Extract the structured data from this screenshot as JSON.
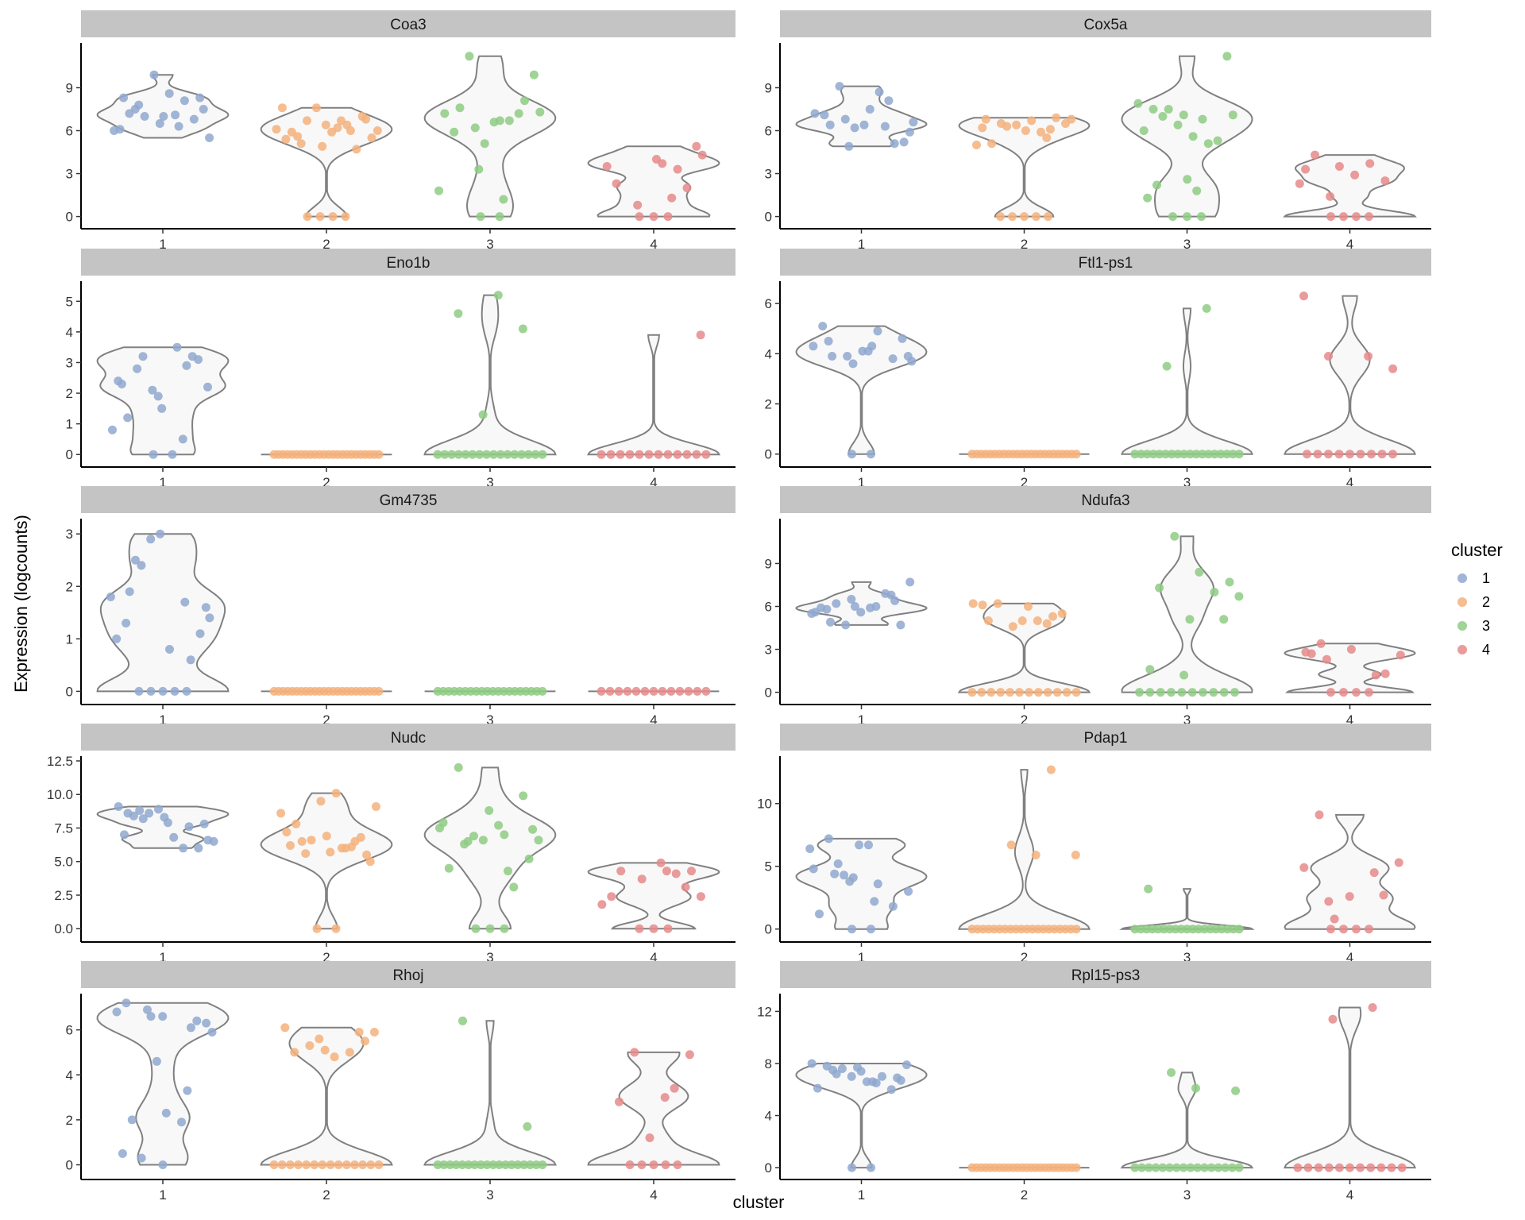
{
  "chart_data": {
    "type": "violin",
    "xlabel": "cluster",
    "ylabel": "Expression (logcounts)",
    "categories": [
      "1",
      "2",
      "3",
      "4"
    ],
    "legend": {
      "title": "cluster",
      "position": "right",
      "items": [
        "1",
        "2",
        "3",
        "4"
      ]
    },
    "colors": {
      "1": "#91a8cf",
      "2": "#f5b17c",
      "3": "#8fcb84",
      "4": "#e68a89"
    },
    "grid": false,
    "panels": [
      {
        "gene": "Coa3",
        "ylim": [
          -0.3,
          11.8
        ],
        "yticks": [
          0,
          3,
          6,
          9
        ],
        "groups": [
          {
            "cluster": "1",
            "values": [
              7.1,
              7.5,
              8.3,
              6.5,
              6.1,
              8.1,
              7.0,
              5.5,
              8.6,
              7.2,
              6.8,
              9.9,
              6.0,
              6.3,
              7.8,
              7.5,
              7.0,
              8.3
            ]
          },
          {
            "cluster": "2",
            "values": [
              6.0,
              6.2,
              5.6,
              7.0,
              4.9,
              7.6,
              6.4,
              6.7,
              5.5,
              5.9,
              5.9,
              4.7,
              7.6,
              6.1,
              6.7,
              5.1,
              6.8,
              6.4,
              5.4,
              6.0,
              0.0,
              0.0,
              0.0,
              0.0
            ]
          },
          {
            "cluster": "3",
            "values": [
              6.2,
              7.3,
              6.7,
              7.6,
              8.1,
              5.1,
              7.2,
              6.7,
              11.2,
              9.9,
              6.6,
              5.9,
              7.2,
              3.3,
              1.8,
              1.2,
              0.0,
              0.0
            ]
          },
          {
            "cluster": "4",
            "values": [
              3.3,
              0.8,
              4.3,
              3.7,
              0.0,
              2.0,
              0.0,
              3.5,
              1.3,
              0.0,
              4.9,
              4.0,
              2.3
            ]
          }
        ]
      },
      {
        "gene": "Cox5a",
        "ylim": [
          -0.3,
          11.8
        ],
        "yticks": [
          0,
          3,
          6,
          9
        ],
        "groups": [
          {
            "cluster": "1",
            "values": [
              6.3,
              6.8,
              5.9,
              7.5,
              6.4,
              5.1,
              6.2,
              7.2,
              8.7,
              9.1,
              5.2,
              6.4,
              7.1,
              8.1,
              4.9,
              6.6
            ]
          },
          {
            "cluster": "2",
            "values": [
              6.2,
              5.5,
              6.3,
              6.8,
              6.7,
              5.1,
              6.9,
              6.4,
              5.0,
              5.9,
              6.5,
              6.5,
              6.0,
              6.8,
              6.1,
              0.0,
              0.0,
              0.0,
              0.0,
              0.0
            ]
          },
          {
            "cluster": "3",
            "values": [
              7.1,
              6.0,
              5.1,
              7.5,
              7.1,
              5.6,
              7.5,
              5.3,
              6.4,
              7.9,
              6.8,
              7.0,
              11.2,
              2.6,
              1.3,
              0.0,
              0.0,
              0.0,
              1.8,
              2.2
            ]
          },
          {
            "cluster": "4",
            "values": [
              2.5,
              0.0,
              3.3,
              3.7,
              1.4,
              0.0,
              2.9,
              4.3,
              0.0,
              3.5,
              2.3,
              0.0
            ]
          }
        ]
      },
      {
        "gene": "Eno1b",
        "ylim": [
          -0.15,
          5.5
        ],
        "yticks": [
          0,
          1,
          2,
          3,
          4,
          5
        ],
        "groups": [
          {
            "cluster": "1",
            "values": [
              3.1,
              1.9,
              2.4,
              0.5,
              3.2,
              2.2,
              0.0,
              1.2,
              3.2,
              2.1,
              0.8,
              3.5,
              2.8,
              0.0,
              1.5,
              2.3,
              2.9
            ]
          },
          {
            "cluster": "2",
            "values": [
              0,
              0,
              0,
              0,
              0,
              0,
              0,
              0,
              0,
              0,
              0,
              0,
              0,
              0,
              0,
              0,
              0,
              0,
              0,
              0,
              0,
              0,
              0,
              0
            ]
          },
          {
            "cluster": "3",
            "values": [
              5.2,
              4.6,
              4.1,
              1.3,
              0,
              0,
              0,
              0,
              0,
              0,
              0,
              0,
              0,
              0,
              0,
              0,
              0,
              0,
              0,
              0
            ]
          },
          {
            "cluster": "4",
            "values": [
              3.9,
              0,
              0,
              0,
              0,
              0,
              0,
              0,
              0,
              0,
              0,
              0,
              0
            ]
          }
        ]
      },
      {
        "gene": "Ftl1-ps1",
        "ylim": [
          -0.2,
          6.7
        ],
        "yticks": [
          0,
          2,
          4,
          6
        ],
        "groups": [
          {
            "cluster": "1",
            "values": [
              3.9,
              4.1,
              4.5,
              3.8,
              3.6,
              4.3,
              4.9,
              0.0,
              4.6,
              4.1,
              5.1,
              0.0,
              3.9,
              3.7,
              4.3,
              3.9
            ]
          },
          {
            "cluster": "2",
            "values": [
              0,
              0,
              0,
              0,
              0,
              0,
              0,
              0,
              0,
              0,
              0,
              0,
              0,
              0,
              0,
              0,
              0,
              0,
              0,
              0,
              0,
              0,
              0,
              0
            ]
          },
          {
            "cluster": "3",
            "values": [
              5.8,
              3.5,
              0,
              0,
              0,
              0,
              0,
              0,
              0,
              0,
              0,
              0,
              0,
              0,
              0,
              0,
              0,
              0,
              0,
              0
            ]
          },
          {
            "cluster": "4",
            "values": [
              6.3,
              3.9,
              3.9,
              3.4,
              0,
              0,
              0,
              0,
              0,
              0,
              0,
              0,
              0
            ]
          }
        ]
      },
      {
        "gene": "Gm4735",
        "ylim": [
          -0.1,
          3.2
        ],
        "yticks": [
          0,
          1,
          2,
          3
        ],
        "groups": [
          {
            "cluster": "1",
            "values": [
              1.0,
              0.0,
              2.4,
              1.6,
              0.0,
              1.3,
              0.6,
              2.9,
              1.8,
              0.0,
              2.5,
              1.1,
              3.0,
              0.0,
              1.7,
              0.0,
              1.4,
              0.8,
              1.9
            ]
          },
          {
            "cluster": "2",
            "values": [
              0,
              0,
              0,
              0,
              0,
              0,
              0,
              0,
              0,
              0,
              0,
              0,
              0,
              0,
              0,
              0,
              0,
              0,
              0,
              0,
              0,
              0,
              0,
              0
            ]
          },
          {
            "cluster": "3",
            "values": [
              0,
              0,
              0,
              0,
              0,
              0,
              0,
              0,
              0,
              0,
              0,
              0,
              0,
              0,
              0,
              0,
              0,
              0,
              0,
              0
            ]
          },
          {
            "cluster": "4",
            "values": [
              0,
              0,
              0,
              0,
              0,
              0,
              0,
              0,
              0,
              0,
              0,
              0,
              0
            ]
          }
        ]
      },
      {
        "gene": "Ndufa3",
        "ylim": [
          -0.3,
          11.8
        ],
        "yticks": [
          0,
          3,
          6,
          9
        ],
        "groups": [
          {
            "cluster": "1",
            "values": [
              5.8,
              6.8,
              6.5,
              5.5,
              6.0,
              6.2,
              4.7,
              5.6,
              5.9,
              6.9,
              4.7,
              7.7,
              5.9,
              4.9,
              6.4,
              6.0,
              5.6
            ]
          },
          {
            "cluster": "2",
            "values": [
              6.0,
              5.0,
              5.3,
              4.6,
              6.2,
              5.0,
              6.2,
              5.5,
              5.0,
              6.1,
              4.8,
              0,
              0,
              0,
              0,
              0,
              0,
              0,
              0,
              0,
              0,
              0,
              0
            ]
          },
          {
            "cluster": "3",
            "values": [
              7.7,
              5.1,
              1.6,
              7.0,
              10.9,
              6.7,
              8.4,
              7.3,
              5.1,
              1.2,
              0,
              0,
              0,
              0,
              0,
              0,
              0,
              0,
              0,
              0
            ]
          },
          {
            "cluster": "4",
            "values": [
              2.3,
              0.0,
              3.0,
              2.7,
              1.2,
              0.0,
              2.6,
              0.0,
              3.4,
              1.3,
              0.0,
              2.8
            ]
          }
        ]
      },
      {
        "gene": "Nudc",
        "ylim": [
          -0.4,
          12.5
        ],
        "yticks": [
          0.0,
          2.5,
          5.0,
          7.5,
          10.0,
          12.5
        ],
        "groups": [
          {
            "cluster": "1",
            "values": [
              8.8,
              7.8,
              8.3,
              7.0,
              7.6,
              8.6,
              6.5,
              6.8,
              8.4,
              6.0,
              8.9,
              9.1,
              6.0,
              8.2,
              6.6,
              7.9,
              8.6
            ]
          },
          {
            "cluster": "2",
            "values": [
              6.0,
              6.5,
              5.5,
              6.9,
              7.2,
              6.1,
              6.6,
              9.1,
              10.1,
              7.8,
              6.8,
              9.5,
              8.6,
              6.0,
              5.6,
              5.0,
              5.7,
              6.2,
              6.5,
              0.0,
              0.0
            ]
          },
          {
            "cluster": "3",
            "values": [
              7.5,
              7.0,
              6.3,
              5.2,
              8.8,
              4.5,
              3.1,
              6.9,
              6.6,
              7.7,
              12.0,
              9.9,
              6.6,
              7.9,
              4.3,
              6.5,
              7.4,
              0.0,
              0.0,
              0.0
            ]
          },
          {
            "cluster": "4",
            "values": [
              3.7,
              1.8,
              4.3,
              0.0,
              4.3,
              0.0,
              2.4,
              4.1,
              0.0,
              2.4,
              4.9,
              4.3,
              3.1
            ]
          }
        ]
      },
      {
        "gene": "Pdap1",
        "ylim": [
          -0.4,
          13.4
        ],
        "yticks": [
          0,
          5,
          10
        ],
        "groups": [
          {
            "cluster": "1",
            "values": [
              3.8,
              6.4,
              2.2,
              4.4,
              0.0,
              6.7,
              1.2,
              0.0,
              4.3,
              3.0,
              6.7,
              7.2,
              1.8,
              4.1,
              4.8,
              3.6,
              5.2
            ]
          },
          {
            "cluster": "2",
            "values": [
              12.7,
              6.7,
              5.9,
              5.9,
              0,
              0,
              0,
              0,
              0,
              0,
              0,
              0,
              0,
              0,
              0,
              0,
              0,
              0,
              0,
              0,
              0,
              0,
              0,
              0
            ]
          },
          {
            "cluster": "3",
            "values": [
              3.2,
              0,
              0,
              0,
              0,
              0,
              0,
              0,
              0,
              0,
              0,
              0,
              0,
              0,
              0,
              0,
              0,
              0,
              0,
              0
            ]
          },
          {
            "cluster": "4",
            "values": [
              2.6,
              0.0,
              4.5,
              0.8,
              5.3,
              0.0,
              9.1,
              2.7,
              0.0,
              4.9,
              0.0,
              2.2
            ]
          }
        ]
      },
      {
        "gene": "Rhoj",
        "ylim": [
          -0.3,
          7.4
        ],
        "yticks": [
          0,
          2,
          4,
          6
        ],
        "groups": [
          {
            "cluster": "1",
            "values": [
              6.6,
              0.5,
              3.3,
              6.9,
              5.9,
              0.0,
              2.0,
              6.4,
              4.6,
              6.8,
              1.9,
              0.3,
              6.3,
              2.3,
              7.2,
              6.1,
              6.6
            ]
          },
          {
            "cluster": "2",
            "values": [
              5.5,
              5.1,
              6.1,
              5.0,
              5.3,
              5.9,
              4.8,
              5.0,
              5.9,
              5.6,
              0,
              0,
              0,
              0,
              0,
              0,
              0,
              0,
              0,
              0,
              0,
              0,
              0,
              0
            ]
          },
          {
            "cluster": "3",
            "values": [
              6.4,
              1.7,
              0,
              0,
              0,
              0,
              0,
              0,
              0,
              0,
              0,
              0,
              0,
              0,
              0,
              0,
              0,
              0,
              0,
              0
            ]
          },
          {
            "cluster": "4",
            "values": [
              3.0,
              0.0,
              4.9,
              1.2,
              0.0,
              3.4,
              5.0,
              0.0,
              0.0,
              2.8,
              0.0
            ]
          }
        ]
      },
      {
        "gene": "Rpl15-ps3",
        "ylim": [
          -0.3,
          13.0
        ],
        "yticks": [
          0,
          4,
          8,
          12
        ],
        "groups": [
          {
            "cluster": "1",
            "values": [
              6.6,
              7.5,
              6.9,
              7.7,
              6.1,
              7.0,
              7.6,
              7.9,
              6.6,
              7.8,
              6.0,
              7.0,
              8.0,
              6.5,
              7.2,
              6.7,
              7.4,
              0.0,
              0.0
            ]
          },
          {
            "cluster": "2",
            "values": [
              0,
              0,
              0,
              0,
              0,
              0,
              0,
              0,
              0,
              0,
              0,
              0,
              0,
              0,
              0,
              0,
              0,
              0,
              0,
              0,
              0,
              0,
              0,
              0
            ]
          },
          {
            "cluster": "3",
            "values": [
              7.3,
              5.9,
              6.1,
              0,
              0,
              0,
              0,
              0,
              0,
              0,
              0,
              0,
              0,
              0,
              0,
              0,
              0,
              0,
              0
            ]
          },
          {
            "cluster": "4",
            "values": [
              12.3,
              11.4,
              0,
              0,
              0,
              0,
              0,
              0,
              0,
              0,
              0,
              0,
              0
            ]
          }
        ]
      }
    ]
  }
}
